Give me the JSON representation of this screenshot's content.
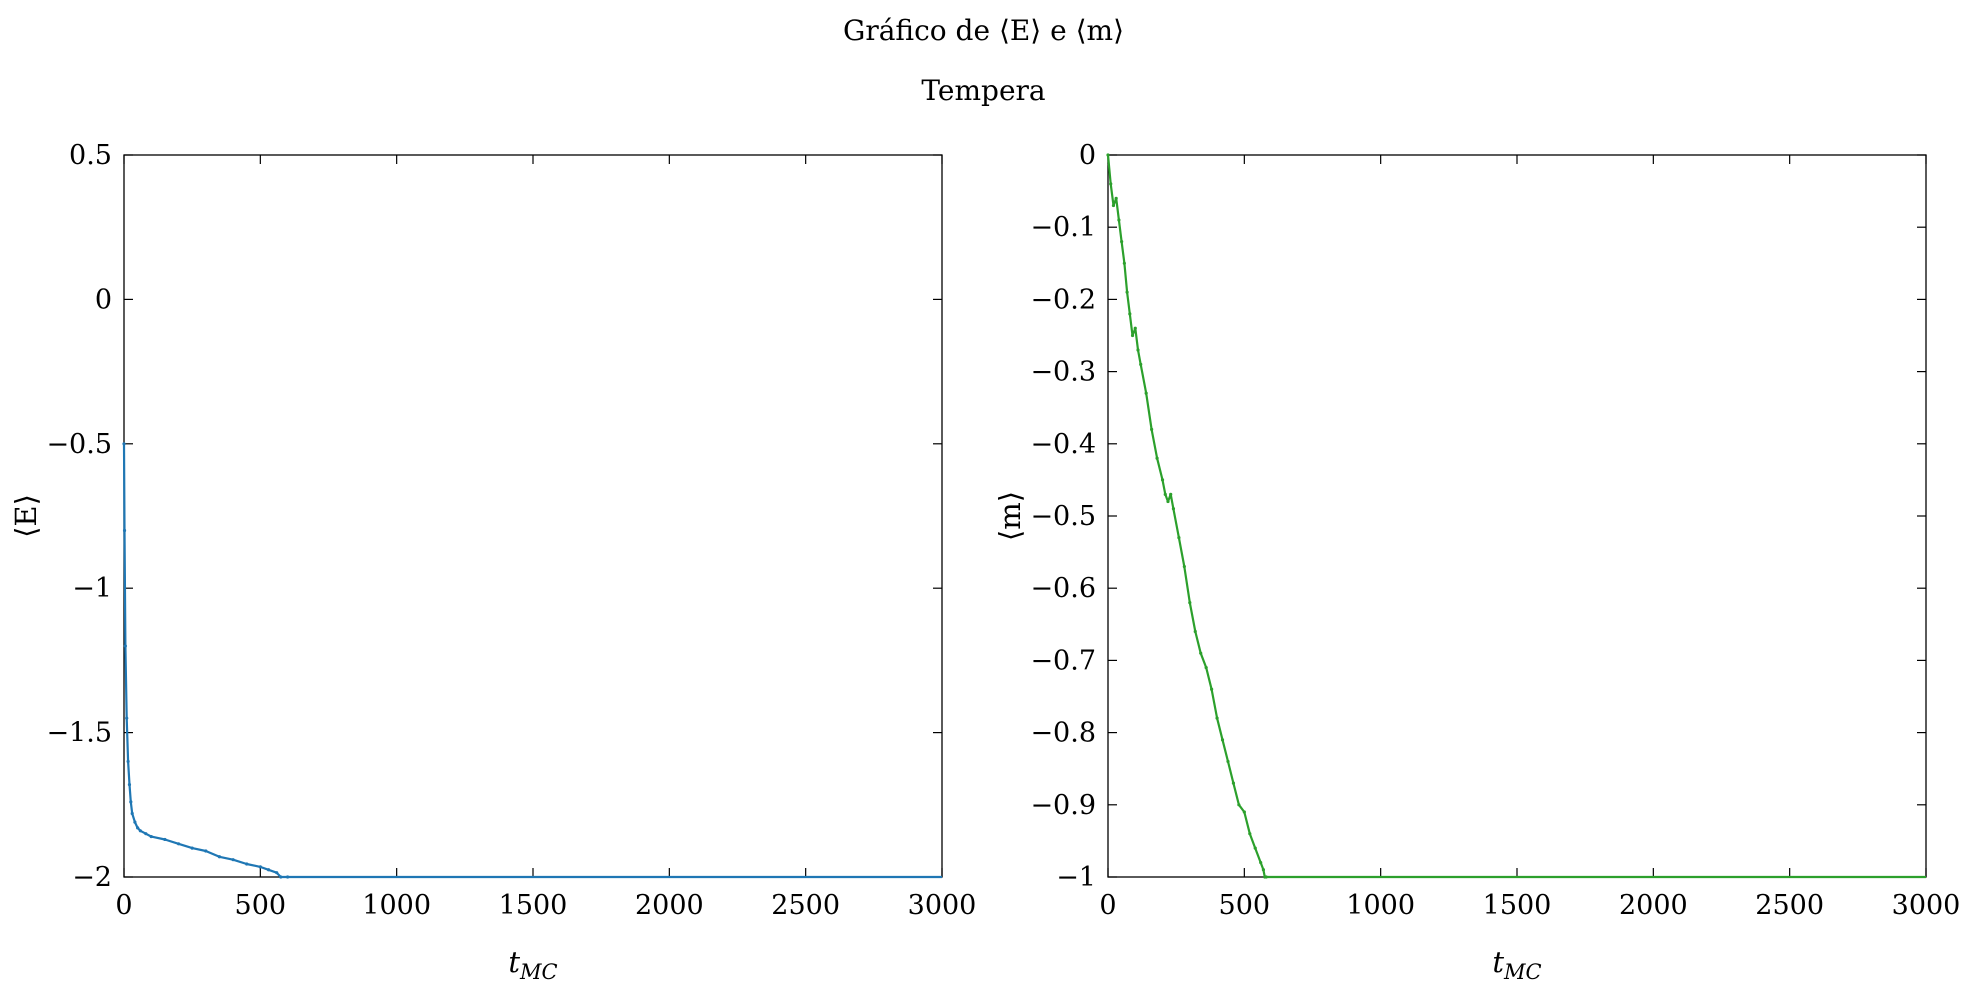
{
  "title": "Gráfico de ⟨E⟩ e ⟨m⟩",
  "subtitle": "Tempera",
  "colors": {
    "energy": "#1f77b4",
    "magnetization": "#2ca02c",
    "axes": "#000000"
  },
  "chart_data": [
    {
      "type": "line",
      "xlabel": {
        "main": "t",
        "sub": "MC"
      },
      "ylabel": "⟨E⟩",
      "xlim": [
        0,
        3000
      ],
      "ylim": [
        -2,
        0.5
      ],
      "xticks": [
        0,
        500,
        1000,
        1500,
        2000,
        2500,
        3000
      ],
      "xtick_labels": [
        "0",
        "500",
        "1000",
        "1500",
        "2000",
        "2500",
        "3000"
      ],
      "yticks": [
        0.5,
        0,
        -0.5,
        -1,
        -1.5,
        -2
      ],
      "ytick_labels": [
        "0.5",
        "0",
        "−0.5",
        "−1",
        "−1.5",
        "−2"
      ],
      "grid": false,
      "series": [
        {
          "color": "#1f77b4",
          "x": [
            0,
            2,
            5,
            10,
            15,
            20,
            25,
            30,
            40,
            50,
            60,
            80,
            100,
            150,
            200,
            250,
            300,
            350,
            400,
            450,
            500,
            530,
            560,
            575,
            600,
            1000,
            1500,
            2000,
            2500,
            3000
          ],
          "y": [
            -0.5,
            -0.8,
            -1.2,
            -1.45,
            -1.6,
            -1.68,
            -1.74,
            -1.78,
            -1.81,
            -1.83,
            -1.84,
            -1.85,
            -1.86,
            -1.87,
            -1.885,
            -1.9,
            -1.91,
            -1.93,
            -1.94,
            -1.955,
            -1.965,
            -1.975,
            -1.985,
            -2,
            -2,
            -2,
            -2,
            -2,
            -2,
            -2
          ]
        }
      ]
    },
    {
      "type": "line",
      "xlabel": {
        "main": "t",
        "sub": "MC"
      },
      "ylabel": "⟨m⟩",
      "xlim": [
        0,
        3000
      ],
      "ylim": [
        -1,
        0
      ],
      "xticks": [
        0,
        500,
        1000,
        1500,
        2000,
        2500,
        3000
      ],
      "xtick_labels": [
        "0",
        "500",
        "1000",
        "1500",
        "2000",
        "2500",
        "3000"
      ],
      "yticks": [
        0,
        -0.1,
        -0.2,
        -0.3,
        -0.4,
        -0.5,
        -0.6,
        -0.7,
        -0.8,
        -0.9,
        -1
      ],
      "ytick_labels": [
        "0",
        "−0.1",
        "−0.2",
        "−0.3",
        "−0.4",
        "−0.5",
        "−0.6",
        "−0.7",
        "−0.8",
        "−0.9",
        "−1"
      ],
      "grid": false,
      "series": [
        {
          "color": "#2ca02c",
          "x": [
            0,
            10,
            20,
            30,
            40,
            50,
            60,
            70,
            80,
            90,
            100,
            110,
            120,
            140,
            160,
            180,
            200,
            210,
            220,
            230,
            240,
            260,
            280,
            300,
            320,
            340,
            360,
            380,
            400,
            420,
            440,
            460,
            480,
            500,
            520,
            540,
            560,
            570,
            575,
            580,
            1000,
            1500,
            2000,
            2500,
            3000
          ],
          "y": [
            0,
            -0.04,
            -0.07,
            -0.06,
            -0.09,
            -0.12,
            -0.15,
            -0.19,
            -0.22,
            -0.25,
            -0.24,
            -0.27,
            -0.29,
            -0.33,
            -0.38,
            -0.42,
            -0.45,
            -0.47,
            -0.48,
            -0.47,
            -0.49,
            -0.53,
            -0.57,
            -0.62,
            -0.66,
            -0.69,
            -0.71,
            -0.74,
            -0.78,
            -0.81,
            -0.84,
            -0.87,
            -0.9,
            -0.91,
            -0.94,
            -0.96,
            -0.98,
            -0.99,
            -1,
            -1,
            -1,
            -1,
            -1,
            -1,
            -1
          ]
        }
      ]
    }
  ]
}
